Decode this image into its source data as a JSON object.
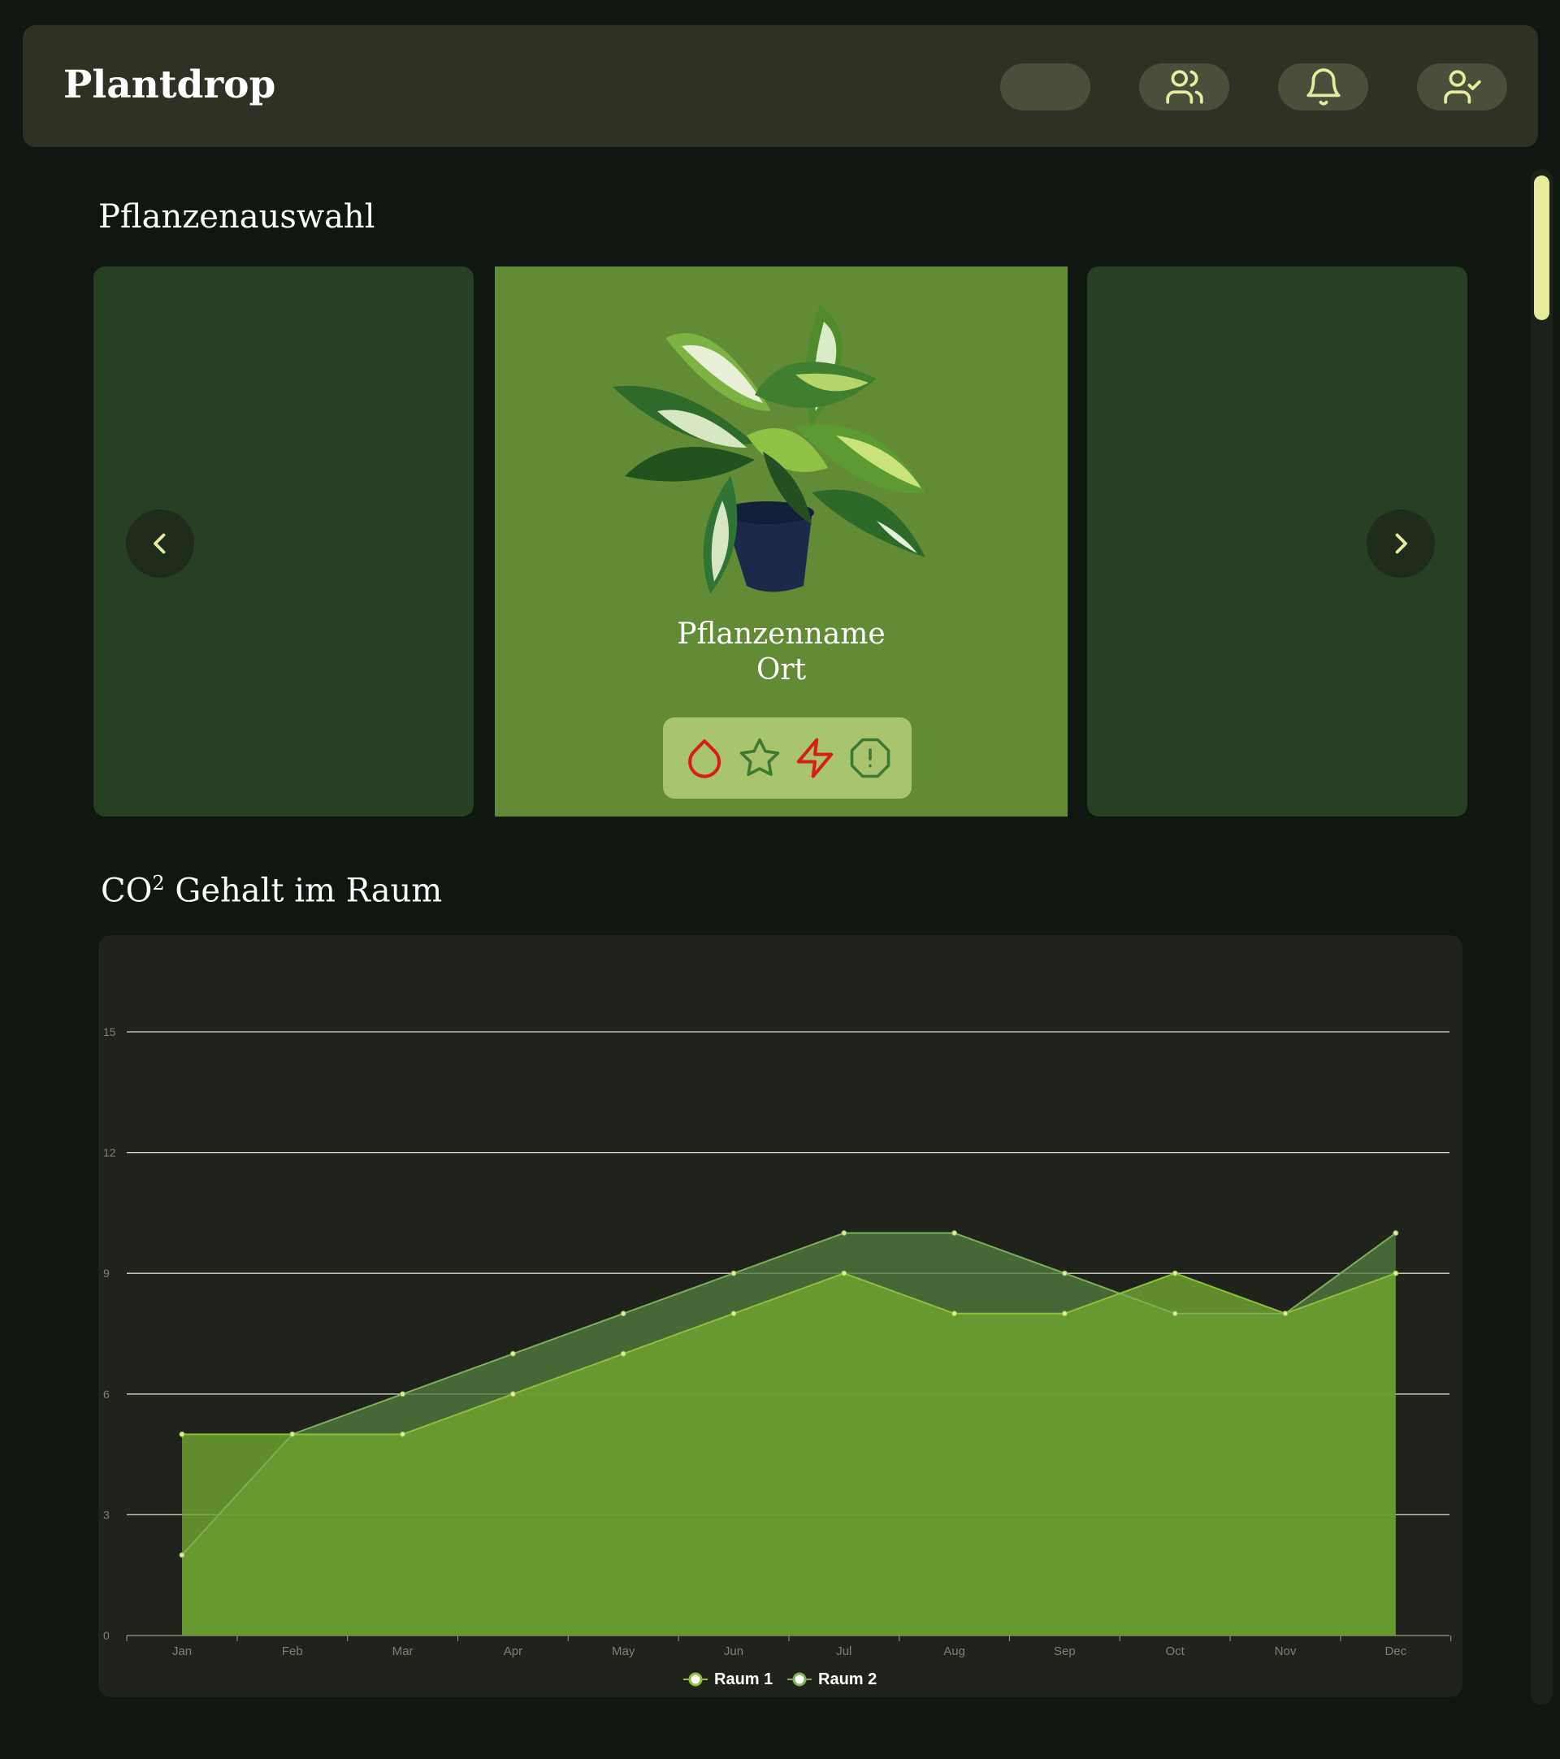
{
  "app": {
    "title": "Plantdrop"
  },
  "header": {
    "buttons": [
      {
        "name": "blank",
        "icon": ""
      },
      {
        "name": "users",
        "icon": "users-icon"
      },
      {
        "name": "notifications",
        "icon": "bell-icon"
      },
      {
        "name": "profile",
        "icon": "user-check-icon"
      }
    ]
  },
  "selection": {
    "title": "Pflanzenauswahl",
    "card": {
      "name": "Pflanzenname",
      "location": "Ort",
      "status_icons": [
        {
          "icon": "water-drop-icon",
          "color": "#d81c1c"
        },
        {
          "icon": "star-icon",
          "color": "#3c7a32"
        },
        {
          "icon": "lightning-icon",
          "color": "#d81c1c"
        },
        {
          "icon": "alert-octagon-icon",
          "color": "#3c7a32"
        }
      ]
    },
    "prev_icon": "chevron-left-icon",
    "next_icon": "chevron-right-icon"
  },
  "co2": {
    "title_main": "CO",
    "title_sup": "2",
    "title_rest": " Gehalt im Raum"
  },
  "colors": {
    "accent": "#e6ec9c",
    "card_active": "#628b35",
    "card_inactive": "#273f22",
    "series1_fill": "#6fa42f",
    "series2_fill": "#4f7c3e"
  },
  "chart_data": {
    "type": "area",
    "title": "",
    "xlabel": "",
    "ylabel": "",
    "categories": [
      "Jan",
      "Feb",
      "Mar",
      "Apr",
      "May",
      "Jun",
      "Jul",
      "Aug",
      "Sep",
      "Oct",
      "Nov",
      "Dec"
    ],
    "ylim": [
      0,
      15
    ],
    "yticks": [
      0,
      3,
      6,
      9,
      12,
      15
    ],
    "grid": true,
    "legend": "bottom",
    "series": [
      {
        "name": "Raum 1",
        "values": [
          5,
          5,
          5,
          6,
          7,
          8,
          9,
          8,
          8,
          9,
          8,
          9
        ]
      },
      {
        "name": "Raum 2",
        "values": [
          2,
          5,
          6,
          7,
          8,
          9,
          10,
          10,
          9,
          8,
          8,
          10
        ]
      }
    ]
  }
}
